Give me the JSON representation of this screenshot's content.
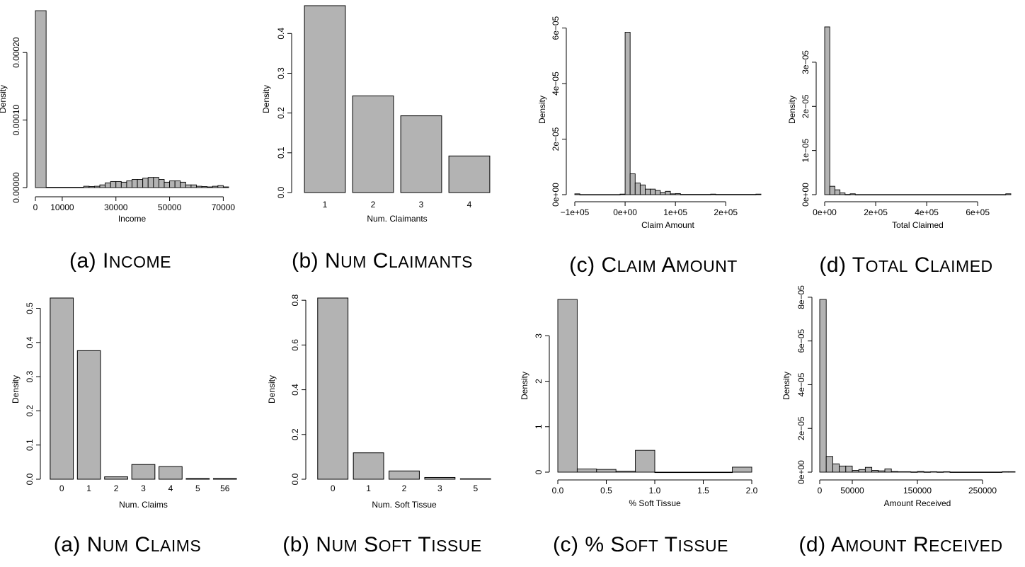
{
  "charts": [
    {
      "id": "income",
      "caption_prefix": "(a)",
      "caption": "Income",
      "chart_data": {
        "type": "bar",
        "xlabel": "Income",
        "ylabel": "Density",
        "xlim": [
          0,
          72000
        ],
        "ylim": [
          0,
          0.00026
        ],
        "xticks": [
          {
            "v": 0,
            "label": "0"
          },
          {
            "v": 10000,
            "label": "10000"
          },
          {
            "v": 30000,
            "label": "30000"
          },
          {
            "v": 50000,
            "label": "50000"
          },
          {
            "v": 70000,
            "label": "70000"
          }
        ],
        "yticks": [
          {
            "v": 0,
            "label": "0.00000"
          },
          {
            "v": 0.0001,
            "label": "0.00010"
          },
          {
            "v": 0.0002,
            "label": "0.00020"
          }
        ],
        "bars": [
          {
            "x0": 0,
            "x1": 4000,
            "y": 0.000262
          },
          {
            "x0": 4000,
            "x1": 18000,
            "y": 5e-07
          },
          {
            "x0": 18000,
            "x1": 20000,
            "y": 2e-06
          },
          {
            "x0": 20000,
            "x1": 22000,
            "y": 1.5e-06
          },
          {
            "x0": 22000,
            "x1": 24000,
            "y": 2e-06
          },
          {
            "x0": 24000,
            "x1": 26000,
            "y": 4e-06
          },
          {
            "x0": 26000,
            "x1": 28000,
            "y": 7e-06
          },
          {
            "x0": 28000,
            "x1": 30000,
            "y": 9e-06
          },
          {
            "x0": 30000,
            "x1": 32000,
            "y": 9e-06
          },
          {
            "x0": 32000,
            "x1": 34000,
            "y": 8e-06
          },
          {
            "x0": 34000,
            "x1": 36000,
            "y": 1e-05
          },
          {
            "x0": 36000,
            "x1": 38000,
            "y": 1.2e-05
          },
          {
            "x0": 38000,
            "x1": 40000,
            "y": 1.2e-05
          },
          {
            "x0": 40000,
            "x1": 42000,
            "y": 1.4e-05
          },
          {
            "x0": 42000,
            "x1": 44000,
            "y": 1.5e-05
          },
          {
            "x0": 44000,
            "x1": 46000,
            "y": 1.5e-05
          },
          {
            "x0": 46000,
            "x1": 48000,
            "y": 1.2e-05
          },
          {
            "x0": 48000,
            "x1": 50000,
            "y": 8e-06
          },
          {
            "x0": 50000,
            "x1": 52000,
            "y": 1e-05
          },
          {
            "x0": 52000,
            "x1": 54000,
            "y": 1e-05
          },
          {
            "x0": 54000,
            "x1": 56000,
            "y": 8e-06
          },
          {
            "x0": 56000,
            "x1": 58000,
            "y": 4e-06
          },
          {
            "x0": 58000,
            "x1": 60000,
            "y": 4e-06
          },
          {
            "x0": 60000,
            "x1": 62000,
            "y": 2e-06
          },
          {
            "x0": 62000,
            "x1": 64000,
            "y": 1.5e-06
          },
          {
            "x0": 64000,
            "x1": 66000,
            "y": 1e-06
          },
          {
            "x0": 66000,
            "x1": 68000,
            "y": 2e-06
          },
          {
            "x0": 68000,
            "x1": 70000,
            "y": 3e-06
          },
          {
            "x0": 70000,
            "x1": 72000,
            "y": 1e-06
          }
        ]
      }
    },
    {
      "id": "num-claimants",
      "caption_prefix": "(b)",
      "caption": "Num Claimants",
      "chart_data": {
        "type": "bar",
        "xlabel": "Num. Claimants",
        "ylabel": "Density",
        "ylim": [
          0,
          0.47
        ],
        "categories": [
          "1",
          "2",
          "3",
          "4"
        ],
        "values": [
          0.47,
          0.243,
          0.193,
          0.092
        ],
        "yticks": [
          {
            "v": 0,
            "label": "0.0"
          },
          {
            "v": 0.1,
            "label": "0.1"
          },
          {
            "v": 0.2,
            "label": "0.2"
          },
          {
            "v": 0.3,
            "label": "0.3"
          },
          {
            "v": 0.4,
            "label": "0.4"
          }
        ]
      }
    },
    {
      "id": "claim-amount",
      "caption_prefix": "(c)",
      "caption": "Claim Amount",
      "chart_data": {
        "type": "bar",
        "xlabel": "Claim Amount",
        "ylabel": "Density",
        "xlim": [
          -100000,
          270000
        ],
        "ylim": [
          0,
          6.5e-05
        ],
        "xticks": [
          {
            "v": -100000,
            "label": "−1e+05"
          },
          {
            "v": 0,
            "label": "0e+00"
          },
          {
            "v": 100000,
            "label": "1e+05"
          },
          {
            "v": 200000,
            "label": "2e+05"
          }
        ],
        "yticks": [
          {
            "v": 0,
            "label": "0e+00"
          },
          {
            "v": 2e-05,
            "label": "2e−05"
          },
          {
            "v": 4e-05,
            "label": "4e−05"
          },
          {
            "v": 6e-05,
            "label": "6e−05"
          }
        ],
        "bars": [
          {
            "x0": -100000,
            "x1": -90000,
            "y": 3e-07
          },
          {
            "x0": -90000,
            "x1": -10000,
            "y": 5e-08
          },
          {
            "x0": -10000,
            "x1": 0,
            "y": 2e-07
          },
          {
            "x0": 0,
            "x1": 10000,
            "y": 5.85e-05
          },
          {
            "x0": 10000,
            "x1": 20000,
            "y": 7.5e-06
          },
          {
            "x0": 20000,
            "x1": 30000,
            "y": 4.2e-06
          },
          {
            "x0": 30000,
            "x1": 40000,
            "y": 3.5e-06
          },
          {
            "x0": 40000,
            "x1": 50000,
            "y": 2e-06
          },
          {
            "x0": 50000,
            "x1": 60000,
            "y": 2e-06
          },
          {
            "x0": 60000,
            "x1": 70000,
            "y": 1.5e-06
          },
          {
            "x0": 70000,
            "x1": 80000,
            "y": 8e-07
          },
          {
            "x0": 80000,
            "x1": 90000,
            "y": 1.2e-06
          },
          {
            "x0": 90000,
            "x1": 100000,
            "y": 3e-07
          },
          {
            "x0": 100000,
            "x1": 110000,
            "y": 4e-07
          },
          {
            "x0": 110000,
            "x1": 170000,
            "y": 1e-07
          },
          {
            "x0": 170000,
            "x1": 180000,
            "y": 2e-07
          },
          {
            "x0": 180000,
            "x1": 260000,
            "y": 1e-07
          },
          {
            "x0": 260000,
            "x1": 270000,
            "y": 2e-07
          }
        ]
      }
    },
    {
      "id": "total-claimed",
      "caption_prefix": "(d)",
      "caption": "Total Claimed",
      "chart_data": {
        "type": "bar",
        "xlabel": "Total Claimed",
        "ylabel": "Density",
        "xlim": [
          0,
          730000
        ],
        "ylim": [
          0,
          3.8e-05
        ],
        "xticks": [
          {
            "v": 0,
            "label": "0e+00"
          },
          {
            "v": 200000,
            "label": "2e+05"
          },
          {
            "v": 400000,
            "label": "4e+05"
          },
          {
            "v": 600000,
            "label": "6e+05"
          }
        ],
        "yticks": [
          {
            "v": 0,
            "label": "0e+00"
          },
          {
            "v": 1e-05,
            "label": "1e−05"
          },
          {
            "v": 2e-05,
            "label": "2e−05"
          },
          {
            "v": 3e-05,
            "label": "3e−05"
          }
        ],
        "bars": [
          {
            "x0": 0,
            "x1": 20000,
            "y": 3.8e-05
          },
          {
            "x0": 20000,
            "x1": 40000,
            "y": 1.9e-06
          },
          {
            "x0": 40000,
            "x1": 60000,
            "y": 1.1e-06
          },
          {
            "x0": 60000,
            "x1": 80000,
            "y": 4e-07
          },
          {
            "x0": 80000,
            "x1": 100000,
            "y": 5e-08
          },
          {
            "x0": 100000,
            "x1": 120000,
            "y": 2e-07
          },
          {
            "x0": 120000,
            "x1": 710000,
            "y": 3e-08
          },
          {
            "x0": 710000,
            "x1": 730000,
            "y": 2e-07
          }
        ]
      }
    },
    {
      "id": "num-claims",
      "caption_prefix": "(a)",
      "caption": "Num Claims",
      "chart_data": {
        "type": "bar",
        "xlabel": "Num. Claims",
        "ylabel": "Density",
        "ylim": [
          0,
          0.53
        ],
        "categories": [
          "0",
          "1",
          "2",
          "3",
          "4",
          "5",
          "56"
        ],
        "values": [
          0.53,
          0.376,
          0.007,
          0.043,
          0.037,
          0.002,
          0.002
        ],
        "yticks": [
          {
            "v": 0,
            "label": "0.0"
          },
          {
            "v": 0.1,
            "label": "0.1"
          },
          {
            "v": 0.2,
            "label": "0.2"
          },
          {
            "v": 0.3,
            "label": "0.3"
          },
          {
            "v": 0.4,
            "label": "0.4"
          },
          {
            "v": 0.5,
            "label": "0.5"
          }
        ]
      }
    },
    {
      "id": "num-soft-tissue",
      "caption_prefix": "(b)",
      "caption": "Num Soft Tissue",
      "chart_data": {
        "type": "bar",
        "xlabel": "Num. Soft Tissue",
        "ylabel": "Density",
        "ylim": [
          0,
          0.81
        ],
        "categories": [
          "0",
          "1",
          "2",
          "3",
          "5"
        ],
        "values": [
          0.81,
          0.118,
          0.037,
          0.008,
          0.002
        ],
        "yticks": [
          {
            "v": 0,
            "label": "0.0"
          },
          {
            "v": 0.2,
            "label": "0.2"
          },
          {
            "v": 0.4,
            "label": "0.4"
          },
          {
            "v": 0.6,
            "label": "0.6"
          },
          {
            "v": 0.8,
            "label": "0.8"
          }
        ]
      }
    },
    {
      "id": "pct-soft-tissue",
      "caption_prefix": "(c)",
      "caption": "% Soft Tissue",
      "chart_data": {
        "type": "bar",
        "xlabel": "% Soft Tissue",
        "ylabel": "Density",
        "xlim": [
          0,
          2.0
        ],
        "ylim": [
          0,
          3.8
        ],
        "xticks": [
          {
            "v": 0,
            "label": "0.0"
          },
          {
            "v": 0.5,
            "label": "0.5"
          },
          {
            "v": 1.0,
            "label": "1.0"
          },
          {
            "v": 1.5,
            "label": "1.5"
          },
          {
            "v": 2.0,
            "label": "2.0"
          }
        ],
        "yticks": [
          {
            "v": 0,
            "label": "0"
          },
          {
            "v": 1,
            "label": "1"
          },
          {
            "v": 2,
            "label": "2"
          },
          {
            "v": 3,
            "label": "3"
          }
        ],
        "bars": [
          {
            "x0": 0,
            "x1": 0.2,
            "y": 3.8
          },
          {
            "x0": 0.2,
            "x1": 0.4,
            "y": 0.07
          },
          {
            "x0": 0.4,
            "x1": 0.6,
            "y": 0.06
          },
          {
            "x0": 0.6,
            "x1": 0.8,
            "y": 0.02
          },
          {
            "x0": 0.8,
            "x1": 1.0,
            "y": 0.48
          },
          {
            "x0": 1.0,
            "x1": 1.8,
            "y": 0.0
          },
          {
            "x0": 1.8,
            "x1": 2.0,
            "y": 0.11
          }
        ]
      }
    },
    {
      "id": "amount-received",
      "caption_prefix": "(d)",
      "caption": "Amount Received",
      "chart_data": {
        "type": "bar",
        "xlabel": "Amount Received",
        "ylabel": "Density",
        "xlim": [
          0,
          300000
        ],
        "ylim": [
          0,
          7.9e-05
        ],
        "xticks": [
          {
            "v": 0,
            "label": "0"
          },
          {
            "v": 50000,
            "label": "50000"
          },
          {
            "v": 150000,
            "label": "150000"
          },
          {
            "v": 250000,
            "label": "250000"
          }
        ],
        "yticks": [
          {
            "v": 0,
            "label": "0e+00"
          },
          {
            "v": 2e-05,
            "label": "2e−05"
          },
          {
            "v": 4e-05,
            "label": "4e−05"
          },
          {
            "v": 6e-05,
            "label": "6e−05"
          },
          {
            "v": 8e-05,
            "label": "8e−05"
          }
        ],
        "bars": [
          {
            "x0": 0,
            "x1": 10000,
            "y": 7.9e-05
          },
          {
            "x0": 10000,
            "x1": 20000,
            "y": 7.2e-06
          },
          {
            "x0": 20000,
            "x1": 30000,
            "y": 3.8e-06
          },
          {
            "x0": 30000,
            "x1": 40000,
            "y": 2.8e-06
          },
          {
            "x0": 40000,
            "x1": 50000,
            "y": 2.8e-06
          },
          {
            "x0": 50000,
            "x1": 60000,
            "y": 8e-07
          },
          {
            "x0": 60000,
            "x1": 70000,
            "y": 1.2e-06
          },
          {
            "x0": 70000,
            "x1": 80000,
            "y": 2.2e-06
          },
          {
            "x0": 80000,
            "x1": 90000,
            "y": 8e-07
          },
          {
            "x0": 90000,
            "x1": 100000,
            "y": 6e-07
          },
          {
            "x0": 100000,
            "x1": 110000,
            "y": 1.5e-06
          },
          {
            "x0": 110000,
            "x1": 120000,
            "y": 3e-07
          },
          {
            "x0": 120000,
            "x1": 140000,
            "y": 2e-07
          },
          {
            "x0": 140000,
            "x1": 150000,
            "y": 1e-07
          },
          {
            "x0": 150000,
            "x1": 160000,
            "y": 3e-07
          },
          {
            "x0": 160000,
            "x1": 170000,
            "y": 1e-07
          },
          {
            "x0": 170000,
            "x1": 180000,
            "y": 2e-07
          },
          {
            "x0": 180000,
            "x1": 190000,
            "y": 1e-07
          },
          {
            "x0": 190000,
            "x1": 200000,
            "y": 2e-07
          },
          {
            "x0": 200000,
            "x1": 280000,
            "y": 5e-08
          },
          {
            "x0": 280000,
            "x1": 290000,
            "y": 2e-07
          },
          {
            "x0": 290000,
            "x1": 300000,
            "y": 2e-07
          }
        ]
      }
    }
  ],
  "style": {
    "bar_fill": "#b3b3b3",
    "bar_stroke": "#000000"
  }
}
